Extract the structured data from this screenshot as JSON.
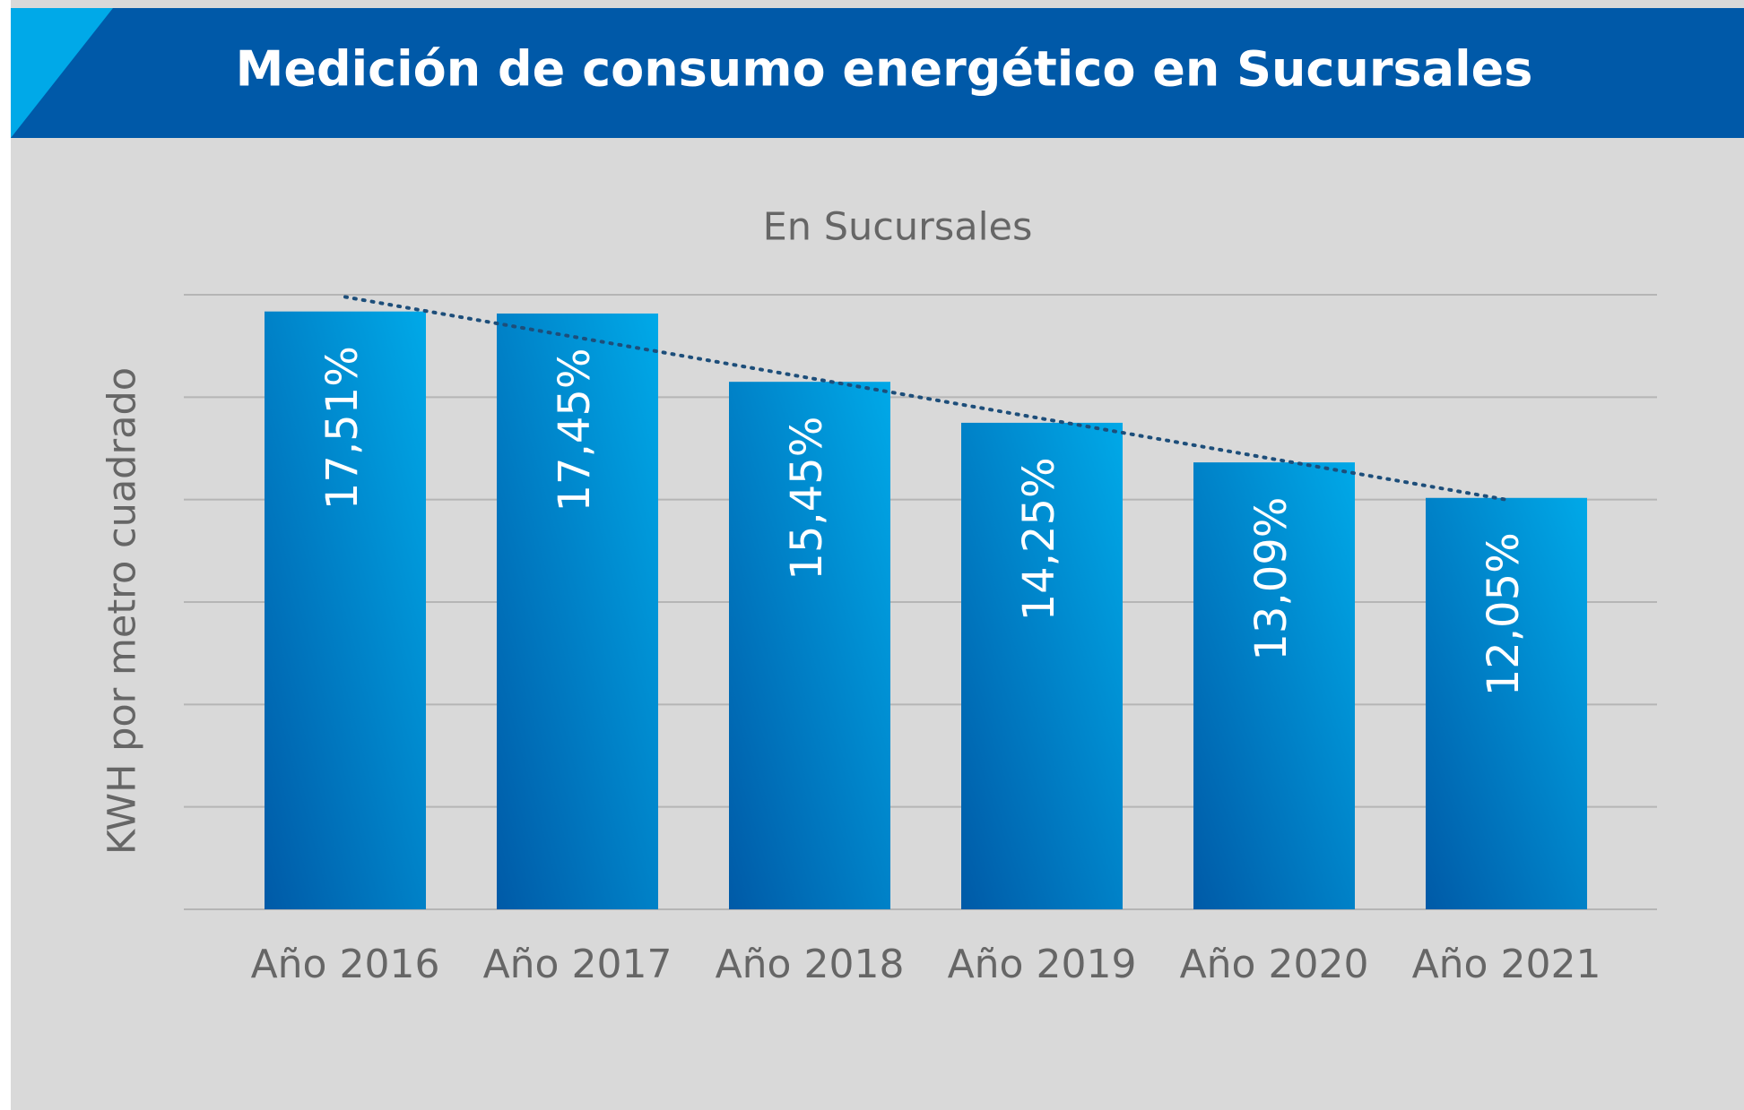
{
  "chart_data": {
    "type": "bar",
    "header": "Medición de consumo energético en Sucursales",
    "title": "En Sucursales",
    "y_label": "KWH por metro cuadrado",
    "categories": [
      "Año 2016",
      "Año 2017",
      "Año 2018",
      "Año 2019",
      "Año 2020",
      "Año 2021"
    ],
    "values": [
      17.51,
      17.45,
      15.45,
      14.25,
      13.09,
      12.05
    ],
    "value_labels": [
      "17,51%",
      "17,45%",
      "15,45%",
      "14,25%",
      "13,09%",
      "12,05%"
    ],
    "color": "#0072bc",
    "ylim": [
      0,
      18
    ],
    "yticks": [
      0,
      3,
      6,
      9,
      12,
      15,
      18
    ],
    "grid": true,
    "ytick_labels": false,
    "trendline": "linear"
  }
}
